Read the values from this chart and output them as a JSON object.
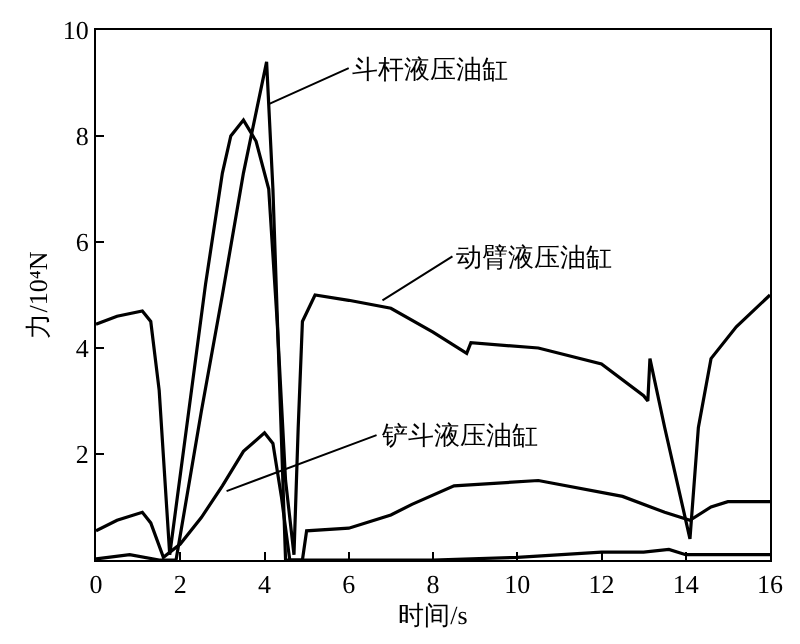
{
  "chart_data": {
    "type": "line",
    "xlabel": "时间/s",
    "ylabel": "力/10⁴N",
    "xlim": [
      0,
      16
    ],
    "xticks": [
      0,
      2,
      4,
      6,
      8,
      10,
      12,
      14,
      16
    ],
    "ylim": [
      0,
      10
    ],
    "yticks": [
      {
        "value": 0,
        "label": null
      },
      2,
      4,
      6,
      8,
      10
    ],
    "legend": false,
    "marker": "none",
    "line_style": "solid",
    "series": [
      {
        "color": "#000000",
        "x": [
          0,
          0.5,
          1.1,
          1.3,
          1.5,
          1.75,
          2.2,
          2.6,
          3.0,
          3.2,
          3.5,
          3.8,
          4.1,
          4.3,
          4.5,
          4.7,
          4.8,
          4.9,
          5.2,
          6,
          7,
          8,
          8.8,
          8.9,
          10.5,
          12,
          13,
          13.1,
          13.15,
          13.5,
          14.1,
          14.3,
          14.6,
          15.2,
          16
        ],
        "values": [
          4.45,
          4.6,
          4.7,
          4.5,
          3.2,
          0.1,
          2.8,
          5.2,
          7.3,
          8.0,
          8.3,
          7.9,
          7.0,
          4.5,
          1.5,
          0.1,
          2.5,
          4.5,
          5.0,
          4.9,
          4.75,
          4.3,
          3.9,
          4.1,
          4.0,
          3.7,
          3.1,
          3.0,
          3.8,
          2.5,
          0.4,
          2.5,
          3.8,
          4.4,
          5.0
        ]
      },
      {
        "color": "#000000",
        "x": [
          0,
          0.8,
          1.5,
          1.9,
          2.5,
          3.0,
          3.5,
          4.05,
          4.2,
          4.35,
          4.5,
          5,
          8,
          10,
          12,
          13,
          13.6,
          14,
          16
        ],
        "values": [
          0.02,
          0.1,
          0.0,
          0.0,
          2.8,
          5.0,
          7.3,
          9.4,
          7.0,
          3.5,
          0.0,
          0.0,
          0.0,
          0.05,
          0.15,
          0.15,
          0.2,
          0.1,
          0.1
        ]
      },
      {
        "color": "#000000",
        "x": [
          0,
          0.5,
          1.1,
          1.3,
          1.6,
          2.0,
          2.5,
          3.0,
          3.5,
          4.0,
          4.2,
          4.4,
          4.6,
          4.9,
          5.0,
          6,
          7,
          7.5,
          8.5,
          10.5,
          12.5,
          13.5,
          14.1,
          14.6,
          15,
          16
        ],
        "values": [
          0.55,
          0.75,
          0.9,
          0.7,
          0.05,
          0.3,
          0.8,
          1.4,
          2.05,
          2.4,
          2.2,
          1.2,
          0.0,
          0.0,
          0.55,
          0.6,
          0.85,
          1.05,
          1.4,
          1.5,
          1.2,
          0.9,
          0.75,
          1.0,
          1.1,
          1.1
        ]
      }
    ],
    "annotations": [
      {
        "text": "斗杆液压油缸",
        "x": 4.1,
        "y": 8.6
      },
      {
        "text": "动臂液压油缸",
        "x": 6.8,
        "y": 4.9
      },
      {
        "text": "铲斗液压油缸",
        "x": 3.1,
        "y": 1.3
      }
    ]
  }
}
